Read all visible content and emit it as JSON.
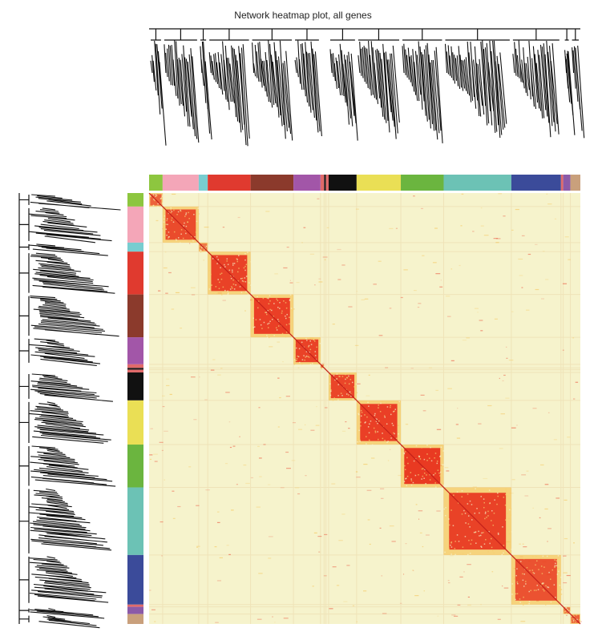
{
  "chart_data": {
    "type": "heatmap",
    "title": "Network heatmap plot, all genes",
    "colors": {
      "background": "#f6f3cc",
      "low": "#f6f3cc",
      "mid": "#f5b83a",
      "high": "#e8321e",
      "dendrogram": "#111111",
      "separator": "#ffffff"
    },
    "modules": [
      {
        "color": "#8dc63f",
        "fraction": 0.03,
        "intensity": 0.7
      },
      {
        "color": "#f4a6b8",
        "fraction": 0.08,
        "intensity": 0.85
      },
      {
        "color": "#78cdd0",
        "fraction": 0.02,
        "intensity": 0.55
      },
      {
        "color": "#e03a2f",
        "fraction": 0.095,
        "intensity": 0.9
      },
      {
        "color": "#8b3a2c",
        "fraction": 0.095,
        "intensity": 0.92
      },
      {
        "color": "#a256a8",
        "fraction": 0.06,
        "intensity": 0.9
      },
      {
        "color": "#e06a6a",
        "fraction": 0.008,
        "intensity": 0.6
      },
      {
        "color": "#1a1a1a",
        "fraction": 0.004,
        "intensity": 0.6
      },
      {
        "color": "#e06a6a",
        "fraction": 0.006,
        "intensity": 0.6
      },
      {
        "color": "#111111",
        "fraction": 0.062,
        "intensity": 0.88
      },
      {
        "color": "#eadf55",
        "fraction": 0.098,
        "intensity": 0.92
      },
      {
        "color": "#6bb53f",
        "fraction": 0.095,
        "intensity": 0.95
      },
      {
        "color": "#6cc2b5",
        "fraction": 0.15,
        "intensity": 0.9
      },
      {
        "color": "#3b4b9a",
        "fraction": 0.11,
        "intensity": 0.8
      },
      {
        "color": "#e06a6a",
        "fraction": 0.005,
        "intensity": 0.55
      },
      {
        "color": "#8b5aa8",
        "fraction": 0.016,
        "intensity": 0.6
      },
      {
        "color": "#c9a07c",
        "fraction": 0.022,
        "intensity": 0.7
      }
    ]
  }
}
